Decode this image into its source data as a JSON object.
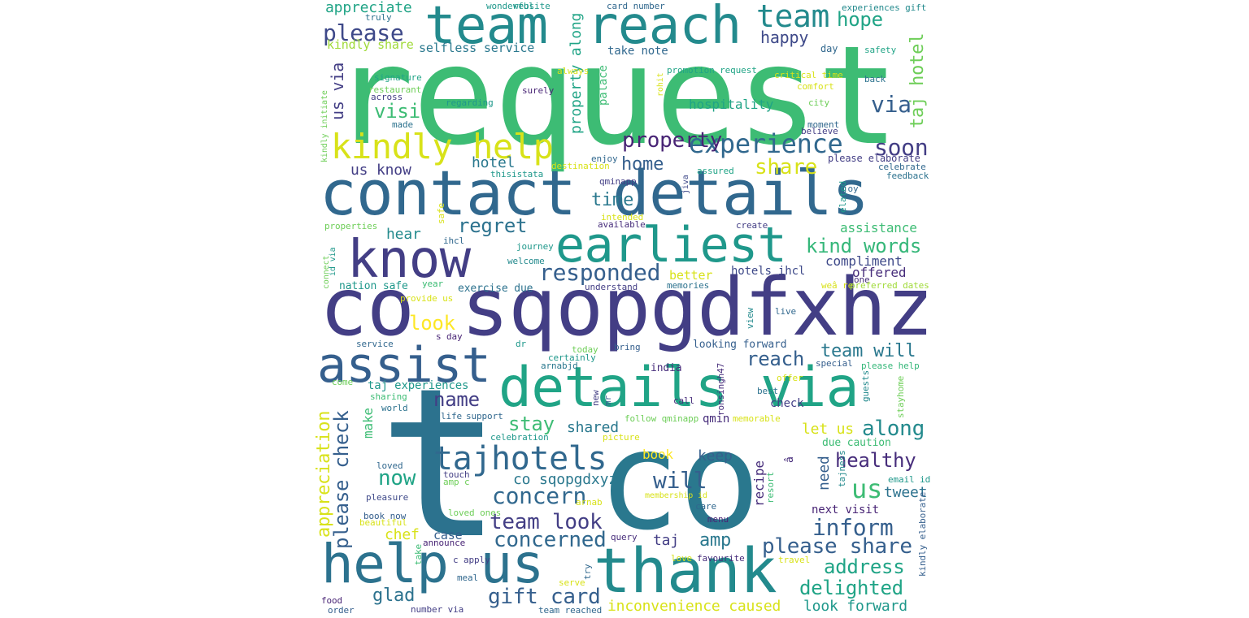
{
  "palette": {
    "background": "#ffffff",
    "colors": {
      "y1": "#fde725",
      "y2": "#d8e219",
      "g1": "#a0da39",
      "g2": "#6ece58",
      "g3": "#3dbc74",
      "g4": "#35b779",
      "t1": "#20a486",
      "t2": "#1f988b",
      "t3": "#238a8d",
      "b1": "#287c8e",
      "b2": "#2a788e",
      "b3": "#2c728e",
      "b4": "#31688e",
      "b5": "#355f8d",
      "p1": "#3e4989",
      "p2": "#433e85",
      "p3": "#472d7b",
      "p4": "#482475",
      "p5": "#440154"
    }
  },
  "word_cloud": {
    "words": [
      {
        "text": "request",
        "color": "g3"
      },
      {
        "text": "t",
        "color": "b3"
      },
      {
        "text": "co",
        "color": "b2"
      },
      {
        "text": "co sqopgdfxhz",
        "color": "p2"
      },
      {
        "text": "contact details",
        "color": "b4"
      },
      {
        "text": "details via",
        "color": "t1"
      },
      {
        "text": "thank",
        "color": "t3"
      },
      {
        "text": "help us",
        "color": "b3"
      },
      {
        "text": "know",
        "color": "p2"
      },
      {
        "text": "earliest",
        "color": "t2"
      },
      {
        "text": "team",
        "color": "t3"
      },
      {
        "text": "reach",
        "color": "t3"
      },
      {
        "text": "assist",
        "color": "b5"
      },
      {
        "text": "kindly help",
        "color": "y2"
      },
      {
        "text": "tajhotels",
        "color": "b4"
      },
      {
        "text": "experience",
        "color": "b4"
      },
      {
        "text": "team",
        "color": "t3"
      },
      {
        "text": "please",
        "color": "p1"
      },
      {
        "text": "appreciate",
        "color": "t1"
      },
      {
        "text": "hope",
        "color": "t1"
      },
      {
        "text": "happy",
        "color": "p1"
      },
      {
        "text": "via",
        "color": "b5"
      },
      {
        "text": "soon",
        "color": "p2"
      },
      {
        "text": "property",
        "color": "p4"
      },
      {
        "text": "share",
        "color": "y2"
      },
      {
        "text": "taj hotel",
        "color": "g2"
      },
      {
        "text": "kind words",
        "color": "g4"
      },
      {
        "text": "responded",
        "color": "b5"
      },
      {
        "text": "regret",
        "color": "b3"
      },
      {
        "text": "us via",
        "color": "p2"
      },
      {
        "text": "visit",
        "color": "g3"
      },
      {
        "text": "kindly share",
        "color": "g1"
      },
      {
        "text": "selfless service",
        "color": "b2"
      },
      {
        "text": "us know",
        "color": "p2"
      },
      {
        "text": "home",
        "color": "b5"
      },
      {
        "text": "time",
        "color": "b2"
      },
      {
        "text": "hotel",
        "color": "b2"
      },
      {
        "text": "hospitality",
        "color": "t1"
      },
      {
        "text": "assistance",
        "color": "g3"
      },
      {
        "text": "hear",
        "color": "t3"
      },
      {
        "text": "compliment",
        "color": "p1"
      },
      {
        "text": "offered",
        "color": "p3"
      },
      {
        "text": "team will",
        "color": "b2"
      },
      {
        "text": "reach",
        "color": "b5"
      },
      {
        "text": "look",
        "color": "y1"
      },
      {
        "text": "better",
        "color": "y2"
      },
      {
        "text": "hotels ihcl",
        "color": "p1"
      },
      {
        "text": "name",
        "color": "p2"
      },
      {
        "text": "please check",
        "color": "b5"
      },
      {
        "text": "appreciation",
        "color": "y2"
      },
      {
        "text": "stay",
        "color": "g3"
      },
      {
        "text": "shared",
        "color": "b2"
      },
      {
        "text": "let us",
        "color": "y2"
      },
      {
        "text": "along",
        "color": "t3"
      },
      {
        "text": "healthy",
        "color": "p3"
      },
      {
        "text": "will",
        "color": "b5"
      },
      {
        "text": "now",
        "color": "t1"
      },
      {
        "text": "concern",
        "color": "b4"
      },
      {
        "text": "co sqopgdxyz7",
        "color": "b2"
      },
      {
        "text": "us",
        "color": "g3"
      },
      {
        "text": "tweet",
        "color": "b3"
      },
      {
        "text": "inform",
        "color": "b5"
      },
      {
        "text": "team look",
        "color": "p2"
      },
      {
        "text": "concerned",
        "color": "b4"
      },
      {
        "text": "amp",
        "color": "b2"
      },
      {
        "text": "please share",
        "color": "b5"
      },
      {
        "text": "address",
        "color": "t1"
      },
      {
        "text": "delighted",
        "color": "t1"
      },
      {
        "text": "gift card",
        "color": "b5"
      },
      {
        "text": "glad",
        "color": "b3"
      },
      {
        "text": "inconvenience caused",
        "color": "y2"
      },
      {
        "text": "look forward",
        "color": "t2"
      },
      {
        "text": "chef",
        "color": "y2"
      },
      {
        "text": "case",
        "color": "b5"
      },
      {
        "text": "taj",
        "color": "p2"
      },
      {
        "text": "book",
        "color": "y1"
      },
      {
        "text": "keep",
        "color": "b5"
      },
      {
        "text": "need",
        "color": "b5"
      },
      {
        "text": "next visit",
        "color": "p4"
      },
      {
        "text": "recipe",
        "color": "p3"
      },
      {
        "text": "property along",
        "color": "t1"
      },
      {
        "text": "take note",
        "color": "b4"
      },
      {
        "text": "day",
        "color": "b4"
      },
      {
        "text": "safety",
        "color": "t1"
      },
      {
        "text": "card number",
        "color": "b4"
      },
      {
        "text": "website",
        "color": "t2"
      },
      {
        "text": "wonderful",
        "color": "t2"
      },
      {
        "text": "experiences gift",
        "color": "t3"
      },
      {
        "text": "truly",
        "color": "b3"
      },
      {
        "text": "signature",
        "color": "t1"
      },
      {
        "text": "restaurant",
        "color": "g2"
      },
      {
        "text": "across",
        "color": "p2"
      },
      {
        "text": "regarding",
        "color": "t2"
      },
      {
        "text": "surely",
        "color": "p4"
      },
      {
        "text": "promotion request",
        "color": "t1"
      },
      {
        "text": "critical time",
        "color": "y2"
      },
      {
        "text": "comfort",
        "color": "y2"
      },
      {
        "text": "back",
        "color": "b3"
      },
      {
        "text": "city",
        "color": "g2"
      },
      {
        "text": "moment",
        "color": "b4"
      },
      {
        "text": "believe",
        "color": "p2"
      },
      {
        "text": "please elaborate",
        "color": "p2"
      },
      {
        "text": "celebrate",
        "color": "b4"
      },
      {
        "text": "feedback",
        "color": "b3"
      },
      {
        "text": "joy",
        "color": "b4"
      },
      {
        "text": "made",
        "color": "b3"
      },
      {
        "text": "palace",
        "color": "g3"
      },
      {
        "text": "rohit",
        "color": "y2"
      },
      {
        "text": "always",
        "color": "y2"
      },
      {
        "text": "enjoy",
        "color": "b4"
      },
      {
        "text": "destination",
        "color": "y2"
      },
      {
        "text": "thisistata",
        "color": "t2"
      },
      {
        "text": "qminapp",
        "color": "p2"
      },
      {
        "text": "jiva",
        "color": "p1"
      },
      {
        "text": "assured",
        "color": "t1"
      },
      {
        "text": "intended",
        "color": "y2"
      },
      {
        "text": "available",
        "color": "p3"
      },
      {
        "text": "create",
        "color": "p2"
      },
      {
        "text": "properties",
        "color": "g2"
      },
      {
        "text": "safe",
        "color": "y2"
      },
      {
        "text": "ihcl",
        "color": "b4"
      },
      {
        "text": "journey",
        "color": "t2"
      },
      {
        "text": "welcome",
        "color": "t3"
      },
      {
        "text": "understand",
        "color": "p2"
      },
      {
        "text": "memories",
        "color": "b3"
      },
      {
        "text": "one",
        "color": "p3"
      },
      {
        "text": "weâ re",
        "color": "y2"
      },
      {
        "text": "preferred dates",
        "color": "g1"
      },
      {
        "text": "nation safe",
        "color": "t2"
      },
      {
        "text": "year",
        "color": "g3"
      },
      {
        "text": "exercise due",
        "color": "b3"
      },
      {
        "text": "provide us",
        "color": "y2"
      },
      {
        "text": "s day",
        "color": "p4"
      },
      {
        "text": "live",
        "color": "b4"
      },
      {
        "text": "view",
        "color": "t3"
      },
      {
        "text": "elated",
        "color": "t2"
      },
      {
        "text": "kindly initiate",
        "color": "g2"
      },
      {
        "text": "id via",
        "color": "t2"
      },
      {
        "text": "connect",
        "color": "g2"
      },
      {
        "text": "service",
        "color": "b4"
      },
      {
        "text": "dr",
        "color": "t2"
      },
      {
        "text": "certainly",
        "color": "t2"
      },
      {
        "text": "bring",
        "color": "b5"
      },
      {
        "text": "today",
        "color": "g2"
      },
      {
        "text": "looking forward",
        "color": "b5"
      },
      {
        "text": "special",
        "color": "b5"
      },
      {
        "text": "please help",
        "color": "g4"
      },
      {
        "text": "guests",
        "color": "t3"
      },
      {
        "text": "ronsingh47",
        "color": "p3"
      },
      {
        "text": "india",
        "color": "p3"
      },
      {
        "text": "arnabjd",
        "color": "b2"
      },
      {
        "text": "offer",
        "color": "y2"
      },
      {
        "text": "best",
        "color": "b3"
      },
      {
        "text": "come",
        "color": "g2"
      },
      {
        "text": "taj experiences",
        "color": "t2"
      },
      {
        "text": "sharing",
        "color": "g3"
      },
      {
        "text": "world",
        "color": "b3"
      },
      {
        "text": "make",
        "color": "g3"
      },
      {
        "text": "life",
        "color": "b4"
      },
      {
        "text": "support",
        "color": "b4"
      },
      {
        "text": "new",
        "color": "p2"
      },
      {
        "text": "mr",
        "color": "b5"
      },
      {
        "text": "call",
        "color": "p3"
      },
      {
        "text": "follow qminapp",
        "color": "g2"
      },
      {
        "text": "qmin",
        "color": "p3"
      },
      {
        "text": "memorable",
        "color": "y2"
      },
      {
        "text": "check",
        "color": "p2"
      },
      {
        "text": "stayhome",
        "color": "g2"
      },
      {
        "text": "celebration",
        "color": "t2"
      },
      {
        "text": "picture",
        "color": "y2"
      },
      {
        "text": "due caution",
        "color": "g3"
      },
      {
        "text": "loved",
        "color": "b4"
      },
      {
        "text": "touch",
        "color": "p2"
      },
      {
        "text": "amp c",
        "color": "g2"
      },
      {
        "text": "â",
        "color": "p3"
      },
      {
        "text": "resort",
        "color": "g3"
      },
      {
        "text": "tajness",
        "color": "t3"
      },
      {
        "text": "email id",
        "color": "t2"
      },
      {
        "text": "pleasure",
        "color": "p1"
      },
      {
        "text": "membership id",
        "color": "y2"
      },
      {
        "text": "arnab",
        "color": "y2"
      },
      {
        "text": "care",
        "color": "b4"
      },
      {
        "text": "book now",
        "color": "b5"
      },
      {
        "text": "loved ones",
        "color": "g2"
      },
      {
        "text": "beautiful",
        "color": "y2"
      },
      {
        "text": "menu",
        "color": "p4"
      },
      {
        "text": "announce",
        "color": "p4"
      },
      {
        "text": "query",
        "color": "p3"
      },
      {
        "text": "take",
        "color": "g3"
      },
      {
        "text": "c apply",
        "color": "p2"
      },
      {
        "text": "love",
        "color": "y2"
      },
      {
        "text": "favourite",
        "color": "p3"
      },
      {
        "text": "travel",
        "color": "y2"
      },
      {
        "text": "try",
        "color": "b4"
      },
      {
        "text": "kindly elaborate",
        "color": "b5"
      },
      {
        "text": "meal",
        "color": "b4"
      },
      {
        "text": "serve",
        "color": "y2"
      },
      {
        "text": "food",
        "color": "p4"
      },
      {
        "text": "order",
        "color": "b5"
      },
      {
        "text": "number via",
        "color": "p2"
      },
      {
        "text": "team reached",
        "color": "b4"
      }
    ]
  }
}
